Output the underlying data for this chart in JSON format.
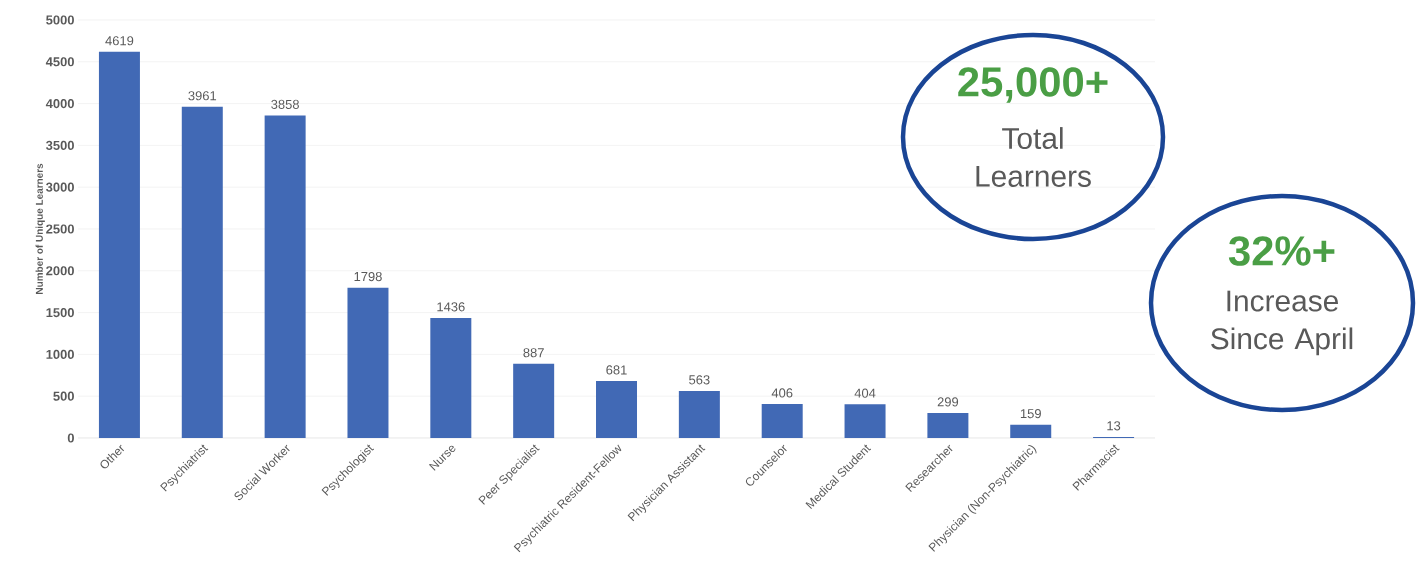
{
  "chart_data": {
    "type": "bar",
    "ylabel": "Number of Unique Learners",
    "categories": [
      "Other",
      "Psychiatrist",
      "Social Worker",
      "Psychologist",
      "Nurse",
      "Peer Specialist",
      "Psychiatric Resident-Fellow",
      "Physician Assistant",
      "Counselor",
      "Medical Student",
      "Researcher",
      "Physician (Non-Psychiatric)",
      "Pharmacist"
    ],
    "values": [
      4619,
      3961,
      3858,
      1798,
      1436,
      887,
      681,
      563,
      406,
      404,
      299,
      159,
      13
    ],
    "color": "#4169b5",
    "ylim": [
      0,
      5000
    ],
    "yticks": [
      0,
      500,
      1000,
      1500,
      2000,
      2500,
      3000,
      3500,
      4000,
      4500,
      5000
    ],
    "grid": "y",
    "data_labels": true,
    "annotations": [
      "25,000+",
      "Total Learners",
      "32%+",
      "Increase Since April"
    ]
  }
}
